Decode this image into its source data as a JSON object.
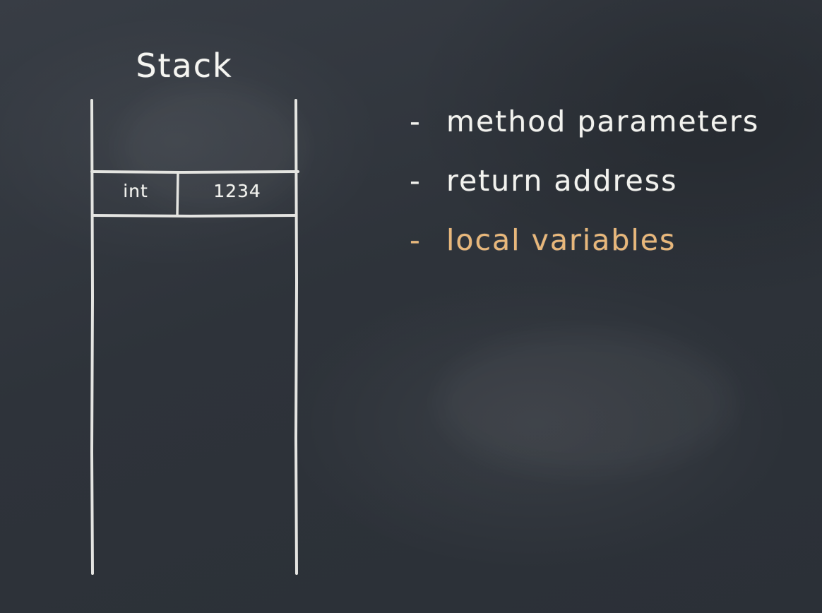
{
  "diagram": {
    "title": "Stack",
    "stack_entry": {
      "type": "int",
      "value": "1234"
    }
  },
  "bullets": [
    {
      "dash": "-",
      "text": "method parameters",
      "color": "#f2f2ee"
    },
    {
      "dash": "-",
      "text": "return address",
      "color": "#f2f2ee"
    },
    {
      "dash": "-",
      "text": "local variables",
      "color": "#e8b77a"
    }
  ],
  "colors": {
    "chalk": "#f2f2ee",
    "highlight": "#e8b77a",
    "board": "#2e333a"
  }
}
